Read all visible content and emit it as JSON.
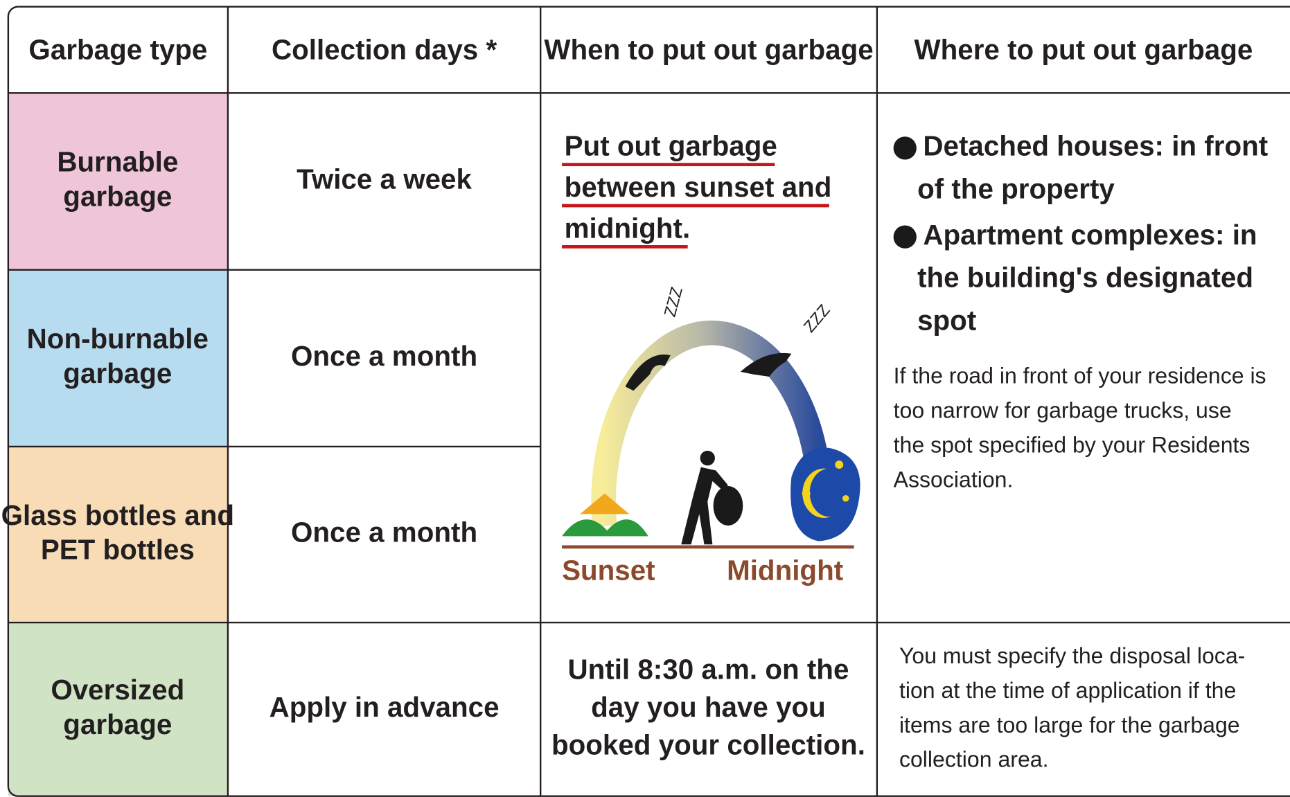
{
  "table": {
    "headers": [
      "Garbage type",
      "Collection days *",
      "When to put out garbage",
      "Where to put out garbage"
    ],
    "rows": [
      {
        "type": [
          "Burnable",
          "garbage"
        ],
        "days": "Twice a week",
        "color": "#efc5da"
      },
      {
        "type": [
          "Non-burnable",
          "garbage"
        ],
        "days": "Once a month",
        "color": "#b8dcef"
      },
      {
        "type": [
          "Glass bottles and",
          "PET bottles"
        ],
        "days": "Once a month",
        "color": "#f8dcb6"
      },
      {
        "type": [
          "Oversized",
          "garbage"
        ],
        "days": "Apply in advance",
        "color": "#d0e4c5",
        "when": [
          "Until 8:30 a.m. on the",
          "day you have you",
          "booked your collection."
        ],
        "where": [
          "You must specify the disposal loca-",
          "tion at the time of application if the",
          "items are too large for the garbage",
          "collection area."
        ]
      }
    ],
    "shared_when": [
      "Put out garbage",
      "between sunset and",
      "midnight."
    ],
    "shared_where": {
      "bullets": [
        [
          "Detached houses: in front",
          "of the property"
        ],
        [
          "Apartment complexes: in",
          "the building's designated",
          "spot"
        ]
      ],
      "note": [
        "If the road in front of your residence is",
        "too narrow for garbage trucks, use",
        "the spot specified by your Residents",
        "Association."
      ]
    }
  },
  "illustration": {
    "left": "Sunset",
    "right": "Midnight",
    "snore": "ZZZ"
  }
}
